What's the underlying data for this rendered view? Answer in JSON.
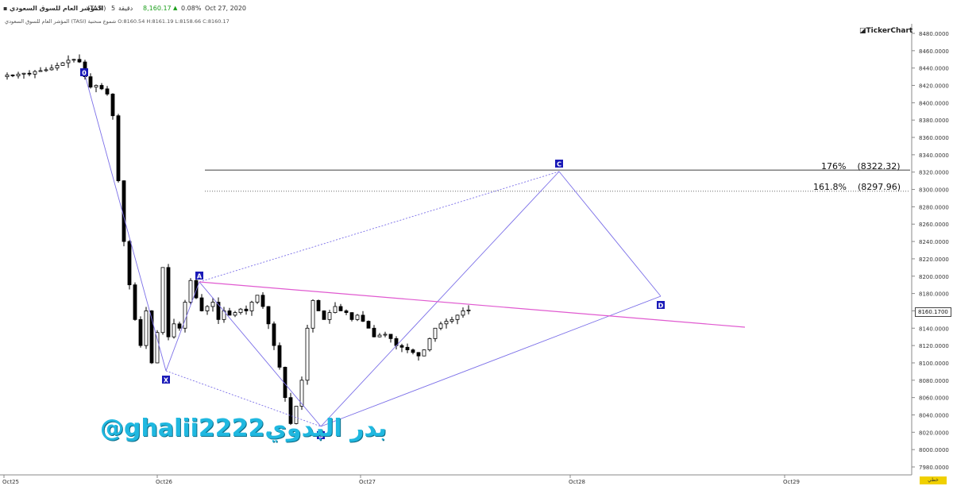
{
  "header": {
    "symbol_name": "المؤشر العام للسوق السعودي",
    "symbol_code": "(TASI)",
    "interval_value": "5",
    "interval_unit": "دقيقة",
    "last_price": "8,160.17",
    "change_pct": "0.08%",
    "date": "Oct 27, 2020"
  },
  "subheader": {
    "text": "المؤشر العام للسوق السعودي (TASI) شموع منحنية O:8160.54 H:8161.19 L:8158.66 C:8160.17"
  },
  "brand": {
    "logo_text": "TickerChart"
  },
  "watermark": {
    "handle": "@ghalii2222بدر البدوي"
  },
  "colors": {
    "candle": "#000000",
    "pattern_lines": "#7b6fe8",
    "trend_line": "#e05ad0",
    "level_line": "#555555",
    "point_label_bg": "#1a1ab8"
  },
  "levels": [
    {
      "label": "176%",
      "value_text": "(8322.32)",
      "value": 8322.32,
      "style": "solid"
    },
    {
      "label": "161.8%",
      "value_text": "(8297.96)",
      "value": 8297.96,
      "style": "dotted"
    }
  ],
  "pattern_points": [
    "0",
    "X",
    "A",
    "B",
    "C",
    "D"
  ],
  "current_price_tag": "8160.1700",
  "footer_indicator": "خطي",
  "chart_data": {
    "type": "candlestick",
    "title": "",
    "x_tick_labels": [
      "Oct25",
      "Oct26",
      "Oct27",
      "Oct28",
      "Oct29"
    ],
    "y_tick_labels": [
      "7980.0000",
      "8000.0000",
      "8020.0000",
      "8040.0000",
      "8060.0000",
      "8080.0000",
      "8100.0000",
      "8120.0000",
      "8140.0000",
      "8160.0000",
      "8180.0000",
      "8200.0000",
      "8220.0000",
      "8240.0000",
      "8260.0000",
      "8280.0000",
      "8300.0000",
      "8320.0000",
      "8340.0000",
      "8360.0000",
      "8380.0000",
      "8400.0000",
      "8420.0000",
      "8440.0000",
      "8460.0000",
      "8480.0000"
    ],
    "ylim": [
      7980,
      8480
    ],
    "price_path": [
      8430,
      8432,
      8431,
      8433,
      8434,
      8433,
      8436,
      8437,
      8438,
      8440,
      8443,
      8446,
      8449,
      8450,
      8447,
      8430,
      8418,
      8420,
      8416,
      8410,
      8385,
      8310,
      8240,
      8190,
      8150,
      8120,
      8160,
      8100,
      8135,
      8210,
      8130,
      8145,
      8140,
      8170,
      8195,
      8175,
      8160,
      8165,
      8170,
      8150,
      8160,
      8155,
      8158,
      8162,
      8160,
      8170,
      8178,
      8165,
      8145,
      8120,
      8095,
      8060,
      8030,
      8050,
      8080,
      8140,
      8172,
      8160,
      8150,
      8158,
      8165,
      8160,
      8158,
      8150,
      8155,
      8148,
      8140,
      8130,
      8132,
      8133,
      8128,
      8120,
      8118,
      8115,
      8112,
      8108,
      8115,
      8128,
      8140,
      8145,
      8148,
      8150,
      8155,
      8160,
      8161
    ],
    "pattern": {
      "0": {
        "date_index": 15,
        "price": 8446
      },
      "X": {
        "date_index": 27,
        "price": 8094
      },
      "A": {
        "date_index": 32,
        "price": 8196
      },
      "B": {
        "date_index": 52,
        "price": 8030
      },
      "C": {
        "date_index": 88,
        "price": 8322
      },
      "D": {
        "date_index": 102,
        "price": 8178
      }
    }
  }
}
